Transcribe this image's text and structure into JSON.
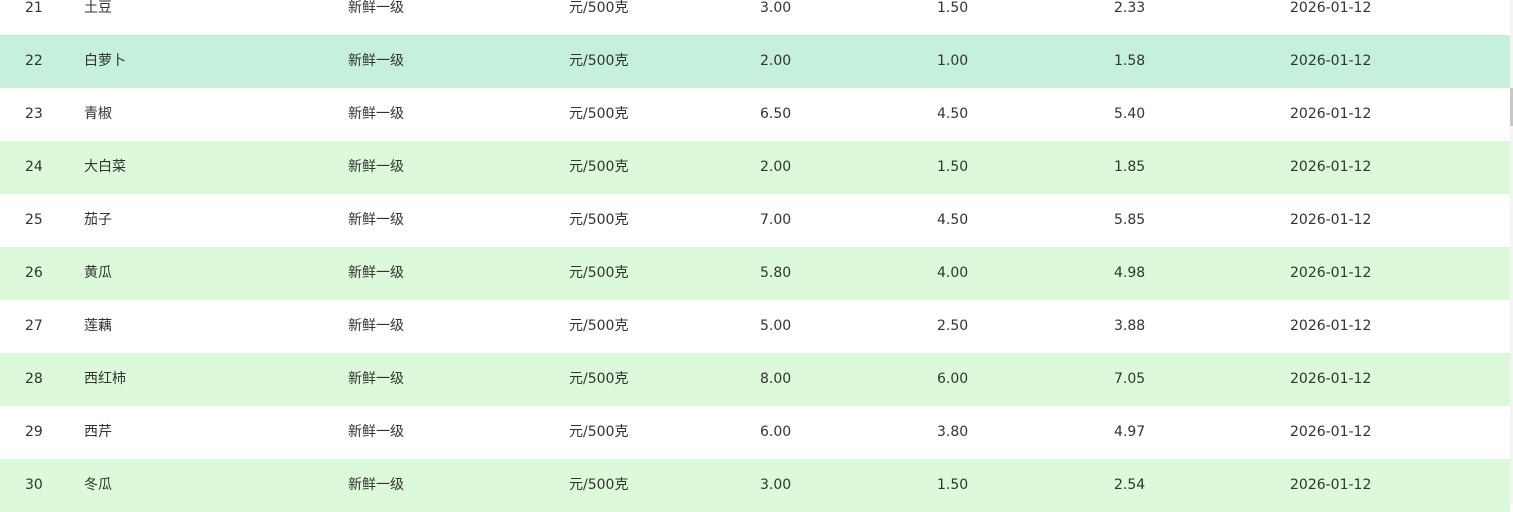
{
  "table": {
    "rows": [
      [
        "21",
        "土豆",
        "新鲜一级",
        "元/500克",
        "3.00",
        "1.50",
        "2.33",
        "2026-01-12"
      ],
      [
        "22",
        "白萝卜",
        "新鲜一级",
        "元/500克",
        "2.00",
        "1.00",
        "1.58",
        "2026-01-12"
      ],
      [
        "23",
        "青椒",
        "新鲜一级",
        "元/500克",
        "6.50",
        "4.50",
        "5.40",
        "2026-01-12"
      ],
      [
        "24",
        "大白菜",
        "新鲜一级",
        "元/500克",
        "2.00",
        "1.50",
        "1.85",
        "2026-01-12"
      ],
      [
        "25",
        "茄子",
        "新鲜一级",
        "元/500克",
        "7.00",
        "4.50",
        "5.85",
        "2026-01-12"
      ],
      [
        "26",
        "黄瓜",
        "新鲜一级",
        "元/500克",
        "5.80",
        "4.00",
        "4.98",
        "2026-01-12"
      ],
      [
        "27",
        "莲藕",
        "新鲜一级",
        "元/500克",
        "5.00",
        "2.50",
        "3.88",
        "2026-01-12"
      ],
      [
        "28",
        "西红柿",
        "新鲜一级",
        "元/500克",
        "8.00",
        "6.00",
        "7.05",
        "2026-01-12"
      ],
      [
        "29",
        "西芹",
        "新鲜一级",
        "元/500克",
        "6.00",
        "3.80",
        "4.97",
        "2026-01-12"
      ],
      [
        "30",
        "冬瓜",
        "新鲜一级",
        "元/500克",
        "3.00",
        "1.50",
        "2.54",
        "2026-01-12"
      ]
    ]
  }
}
